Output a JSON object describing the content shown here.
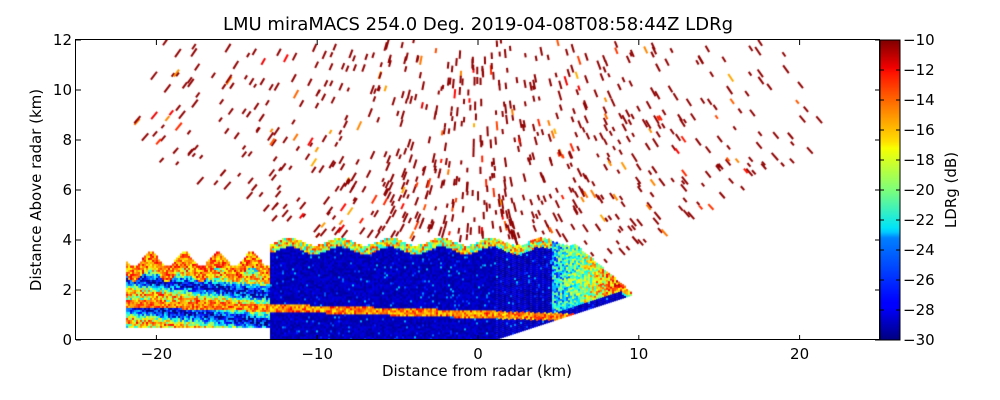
{
  "chart_data": {
    "type": "heatmap",
    "title": "LMU miraMACS 254.0 Deg. 2019-04-08T08:58:44Z  LDRg",
    "xlabel": "Distance from radar (km)",
    "ylabel": "Distance Above radar  (km)",
    "xlim": [
      -25,
      25
    ],
    "ylim": [
      0,
      12
    ],
    "x_ticks": [
      -20,
      -10,
      0,
      10,
      20
    ],
    "x_tick_labels": [
      "−20",
      "−10",
      "0",
      "10",
      "20"
    ],
    "y_ticks": [
      0,
      2,
      4,
      6,
      8,
      10,
      12
    ],
    "y_tick_labels": [
      "0",
      "2",
      "4",
      "6",
      "8",
      "10",
      "12"
    ],
    "grid": false,
    "colorbar": {
      "label": "LDRg (dB)",
      "colormap": "jet",
      "range": [
        -30,
        -10
      ],
      "ticks": [
        -10,
        -12,
        -14,
        -16,
        -18,
        -20,
        -22,
        -24,
        -26,
        -28,
        -30
      ],
      "tick_labels": [
        "−10",
        "−12",
        "−14",
        "−16",
        "−18",
        "−20",
        "−22",
        "−24",
        "−26",
        "−28",
        "−30"
      ],
      "placement": "right"
    },
    "regions": [
      {
        "name": "main cloud body",
        "x_range": [
          -13,
          6
        ],
        "y_range": [
          0,
          4.2
        ],
        "ldr_db": -29
      },
      {
        "name": "cloud edge",
        "x_range": [
          -14,
          9
        ],
        "y_range": [
          3.5,
          4.3
        ],
        "ldr_db": -17
      },
      {
        "name": "melting layer band",
        "x_range": [
          -22,
          9
        ],
        "y_range": [
          0.8,
          1.8
        ],
        "ldr_db": -15
      },
      {
        "name": "left mixed layers",
        "x_range": [
          -22,
          -13
        ],
        "y_range": [
          0.5,
          3.8
        ],
        "ldr_db": -22
      },
      {
        "name": "sparse noise speckle",
        "x_range": [
          -20,
          21.5
        ],
        "y_range": [
          2,
          12
        ],
        "ldr_db": -10.5
      }
    ]
  }
}
